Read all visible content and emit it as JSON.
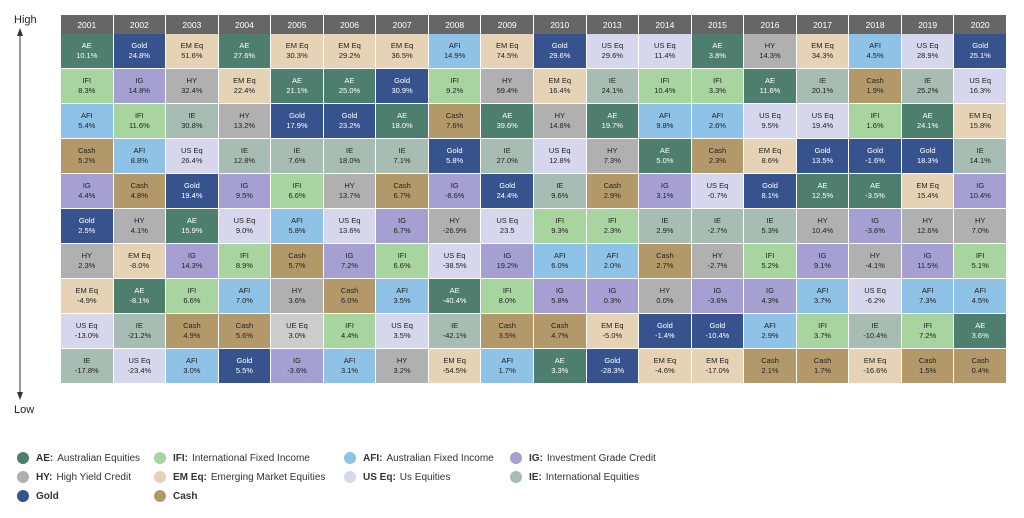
{
  "axis": {
    "high": "High",
    "low": "Low"
  },
  "colors": {
    "AE": "#4e7f6e",
    "IFI": "#a8d4a0",
    "AFI": "#8ec2e6",
    "IG": "#a6a0d2",
    "HY": "#b0b0b0",
    "EM Eq": "#e6d3b5",
    "US Eq": "#d6d7ec",
    "IE": "#a7bdb3",
    "Gold": "#37538e",
    "Cash": "#b3996a"
  },
  "dark_classes": [
    "AE",
    "Gold"
  ],
  "legend": [
    {
      "code": "AE",
      "abbr": "AE:",
      "label": "Australian Equities"
    },
    {
      "code": "IFI",
      "abbr": "IFI:",
      "label": "International Fixed Income"
    },
    {
      "code": "AFI",
      "abbr": "AFI:",
      "label": "Australian Fixed Income"
    },
    {
      "code": "IG",
      "abbr": "IG:",
      "label": "Investment Grade Credit"
    },
    {
      "code": "HY",
      "abbr": "HY:",
      "label": "High Yield Credit"
    },
    {
      "code": "EM Eq",
      "abbr": "EM Eq:",
      "label": "Emerging Market Equities"
    },
    {
      "code": "US Eq",
      "abbr": "US Eq:",
      "label": "Us Equities"
    },
    {
      "code": "IE",
      "abbr": "IE:",
      "label": "International Equities"
    },
    {
      "code": "Gold",
      "abbr": "Gold",
      "label": ""
    },
    {
      "code": "Cash",
      "abbr": "Cash",
      "label": ""
    }
  ],
  "chart_data": {
    "type": "table",
    "title": "",
    "years": [
      "2001",
      "2002",
      "2003",
      "2004",
      "2005",
      "2006",
      "2007",
      "2008",
      "2009",
      "2010",
      "2013",
      "2014",
      "2015",
      "2016",
      "2017",
      "2018",
      "2019",
      "2020"
    ],
    "columns": [
      [
        [
          "AE",
          "10.1%"
        ],
        [
          "IFI",
          "8.3%"
        ],
        [
          "AFI",
          "5.4%"
        ],
        [
          "Cash",
          "5.2%"
        ],
        [
          "IG",
          "4.4%"
        ],
        [
          "Gold",
          "2.5%"
        ],
        [
          "HY",
          "2.3%"
        ],
        [
          "EM Eq",
          "-4.9%"
        ],
        [
          "US Eq",
          "-13.0%"
        ],
        [
          "IE",
          "-17.8%"
        ]
      ],
      [
        [
          "Gold",
          "24.8%"
        ],
        [
          "IG",
          "14.8%"
        ],
        [
          "IFI",
          "11.6%"
        ],
        [
          "AFI",
          "8.8%"
        ],
        [
          "Cash",
          "4.8%"
        ],
        [
          "HY",
          "4.1%"
        ],
        [
          "EM Eq",
          "-8.0%"
        ],
        [
          "AE",
          "-8.1%"
        ],
        [
          "IE",
          "-21.2%"
        ],
        [
          "US Eq",
          "-23.4%"
        ]
      ],
      [
        [
          "EM Eq",
          "51.6%"
        ],
        [
          "HY",
          "32.4%"
        ],
        [
          "IE",
          "30.8%"
        ],
        [
          "US Eq",
          "26.4%"
        ],
        [
          "Gold",
          "19.4%"
        ],
        [
          "AE",
          "15.9%"
        ],
        [
          "IG",
          "14.3%"
        ],
        [
          "IFI",
          "6.6%"
        ],
        [
          "Cash",
          "4.9%"
        ],
        [
          "AFI",
          "3.0%"
        ]
      ],
      [
        [
          "AE",
          "27.6%"
        ],
        [
          "EM Eq",
          "22.4%"
        ],
        [
          "HY",
          "13.2%"
        ],
        [
          "IE",
          "12.8%"
        ],
        [
          "IG",
          "9.5%"
        ],
        [
          "US Eq",
          "9.0%"
        ],
        [
          "IFI",
          "8.9%"
        ],
        [
          "AFI",
          "7.0%"
        ],
        [
          "Cash",
          "5.6%"
        ],
        [
          "Gold",
          "5.5%"
        ]
      ],
      [
        [
          "EM Eq",
          "30.3%"
        ],
        [
          "AE",
          "21.1%"
        ],
        [
          "Gold",
          "17.9%"
        ],
        [
          "IE",
          "7.6%"
        ],
        [
          "IFI",
          "6.6%"
        ],
        [
          "AFI",
          "5.8%"
        ],
        [
          "Cash",
          "5.7%"
        ],
        [
          "HY",
          "3.6%"
        ],
        [
          "UE Eq",
          "3.0%"
        ],
        [
          "IG",
          "-3.6%"
        ]
      ],
      [
        [
          "EM Eq",
          "29.2%"
        ],
        [
          "AE",
          "25.0%"
        ],
        [
          "Gold",
          "23.2%"
        ],
        [
          "IE",
          "18.0%"
        ],
        [
          "HY",
          "13.7%"
        ],
        [
          "US Eq",
          "13.6%"
        ],
        [
          "IG",
          "7.2%"
        ],
        [
          "Cash",
          "6.0%"
        ],
        [
          "IFI",
          "4.4%"
        ],
        [
          "AFI",
          "3.1%"
        ]
      ],
      [
        [
          "EM Eq",
          "36.5%"
        ],
        [
          "Gold",
          "30.9%"
        ],
        [
          "AE",
          "18.0%"
        ],
        [
          "IE",
          "7.1%"
        ],
        [
          "Cash",
          "6.7%"
        ],
        [
          "IG",
          "6.7%"
        ],
        [
          "IFI",
          "6.6%"
        ],
        [
          "AFI",
          "3.5%"
        ],
        [
          "US Eq",
          "3.5%"
        ],
        [
          "HY",
          "3.2%"
        ]
      ],
      [
        [
          "AFI",
          "14.9%"
        ],
        [
          "IFI",
          "9.2%"
        ],
        [
          "Cash",
          "7.6%"
        ],
        [
          "Gold",
          "5.8%"
        ],
        [
          "IG",
          "-8.6%"
        ],
        [
          "HY",
          "-26.9%"
        ],
        [
          "US Eq",
          "-38.5%"
        ],
        [
          "AE",
          "-40.4%"
        ],
        [
          "IE",
          "-42.1%"
        ],
        [
          "EM Eq",
          "-54.5%"
        ]
      ],
      [
        [
          "EM Eq",
          "74.5%"
        ],
        [
          "HY",
          "59.4%"
        ],
        [
          "AE",
          "39.6%"
        ],
        [
          "IE",
          "27.0%"
        ],
        [
          "Gold",
          "24.4%"
        ],
        [
          "US Eq",
          "23.5"
        ],
        [
          "IG",
          "19.2%"
        ],
        [
          "IFI",
          "8.0%"
        ],
        [
          "Cash",
          "3.5%"
        ],
        [
          "AFI",
          "1.7%"
        ]
      ],
      [
        [
          "Gold",
          "29.6%"
        ],
        [
          "EM Eq",
          "16.4%"
        ],
        [
          "HY",
          "14.8%"
        ],
        [
          "US Eq",
          "12.8%"
        ],
        [
          "IE",
          "9.6%"
        ],
        [
          "IFI",
          "9.3%"
        ],
        [
          "AFI",
          "6.0%"
        ],
        [
          "IG",
          "5.8%"
        ],
        [
          "Cash",
          "4.7%"
        ],
        [
          "AE",
          "3.3%"
        ]
      ],
      [
        [
          "US Eq",
          "29.6%"
        ],
        [
          "IE",
          "24.1%"
        ],
        [
          "AE",
          "19.7%"
        ],
        [
          "HY",
          "7.3%"
        ],
        [
          "Cash",
          "2.9%"
        ],
        [
          "IFI",
          "2.3%"
        ],
        [
          "AFI",
          "2.0%"
        ],
        [
          "IG",
          "0.3%"
        ],
        [
          "EM Eq",
          "-5.0%"
        ],
        [
          "Gold",
          "-28.3%"
        ]
      ],
      [
        [
          "US Eq",
          "11.4%"
        ],
        [
          "IFI",
          "10.4%"
        ],
        [
          "AFI",
          "9.8%"
        ],
        [
          "AE",
          "5.0%"
        ],
        [
          "IG",
          "3.1%"
        ],
        [
          "IE",
          "2.9%"
        ],
        [
          "Cash",
          "2.7%"
        ],
        [
          "HY",
          "0.0%"
        ],
        [
          "Gold",
          "-1.4%"
        ],
        [
          "EM Eq",
          "-4.6%"
        ]
      ],
      [
        [
          "AE",
          "3.8%"
        ],
        [
          "IFI",
          "3.3%"
        ],
        [
          "AFI",
          "2.6%"
        ],
        [
          "Cash",
          "2.3%"
        ],
        [
          "US Eq",
          "-0.7%"
        ],
        [
          "IE",
          "-2.7%"
        ],
        [
          "HY",
          "-2.7%"
        ],
        [
          "IG",
          "-3.6%"
        ],
        [
          "Gold",
          "-10.4%"
        ],
        [
          "EM Eq",
          "-17.0%"
        ]
      ],
      [
        [
          "HY",
          "14.3%"
        ],
        [
          "AE",
          "11.6%"
        ],
        [
          "US Eq",
          "9.5%"
        ],
        [
          "EM Eq",
          "8.6%"
        ],
        [
          "Gold",
          "8.1%"
        ],
        [
          "IE",
          "5.3%"
        ],
        [
          "IFI",
          "5.2%"
        ],
        [
          "IG",
          "4.3%"
        ],
        [
          "AFI",
          "2.9%"
        ],
        [
          "Cash",
          "2.1%"
        ]
      ],
      [
        [
          "EM Eq",
          "34.3%"
        ],
        [
          "IE",
          "20.1%"
        ],
        [
          "US Eq",
          "19.4%"
        ],
        [
          "Gold",
          "13.5%"
        ],
        [
          "AE",
          "12.5%"
        ],
        [
          "HY",
          "10.4%"
        ],
        [
          "IG",
          "9.1%"
        ],
        [
          "AFI",
          "3.7%"
        ],
        [
          "IFI",
          "3.7%"
        ],
        [
          "Cash",
          "1.7%"
        ]
      ],
      [
        [
          "AFI",
          "4.5%"
        ],
        [
          "Cash",
          "1.9%"
        ],
        [
          "IFI",
          "1.6%"
        ],
        [
          "Gold",
          "-1.6%"
        ],
        [
          "AE",
          "-3.5%"
        ],
        [
          "IG",
          "-3.6%"
        ],
        [
          "HY",
          "-4.1%"
        ],
        [
          "US Eq",
          "-6.2%"
        ],
        [
          "IE",
          "-10.4%"
        ],
        [
          "EM Eq",
          "-16.6%"
        ]
      ],
      [
        [
          "US Eq",
          "28.9%"
        ],
        [
          "IE",
          "25.2%"
        ],
        [
          "AE",
          "24.1%"
        ],
        [
          "Gold",
          "18.3%"
        ],
        [
          "EM Eq",
          "15.4%"
        ],
        [
          "HY",
          "12.6%"
        ],
        [
          "IG",
          "11.5%"
        ],
        [
          "AFI",
          "7.3%"
        ],
        [
          "IFI",
          "7.2%"
        ],
        [
          "Cash",
          "1.5%"
        ]
      ],
      [
        [
          "Gold",
          "25.1%"
        ],
        [
          "US Eq",
          "16.3%"
        ],
        [
          "EM Eq",
          "15.8%"
        ],
        [
          "IE",
          "14.1%"
        ],
        [
          "IG",
          "10.4%"
        ],
        [
          "HY",
          "7.0%"
        ],
        [
          "IFI",
          "5.1%"
        ],
        [
          "AFI",
          "4.5%"
        ],
        [
          "AE",
          "3.6%"
        ],
        [
          "Cash",
          "0.4%"
        ]
      ]
    ]
  }
}
